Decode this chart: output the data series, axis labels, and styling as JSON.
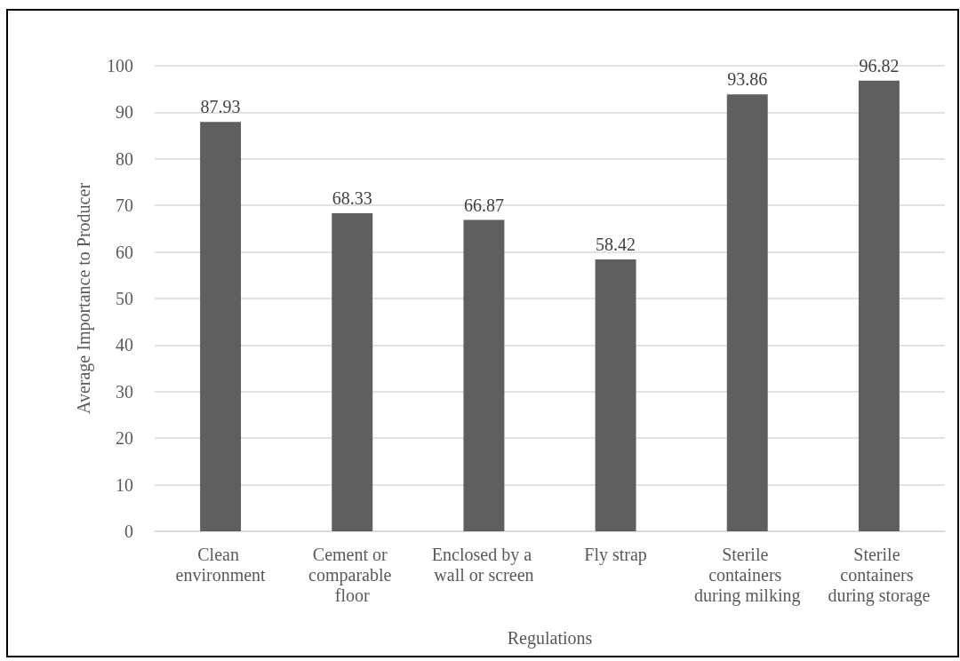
{
  "chart_data": {
    "type": "bar",
    "xlabel": "Regulations",
    "ylabel": "Average Importance to Producer",
    "categories": [
      "Clean environment",
      "Cement or comparable floor",
      "Enclosed by a wall or screen",
      "Fly strap",
      "Sterile containers during milking",
      "Sterile containers during storage"
    ],
    "values": [
      87.93,
      68.33,
      66.87,
      58.42,
      93.86,
      96.82
    ],
    "color": "#5f5f5f",
    "ylim": [
      0,
      100
    ],
    "yticks": [
      0,
      10,
      20,
      30,
      40,
      50,
      60,
      70,
      80,
      90,
      100
    ],
    "grid": "y",
    "data_labels": true
  }
}
